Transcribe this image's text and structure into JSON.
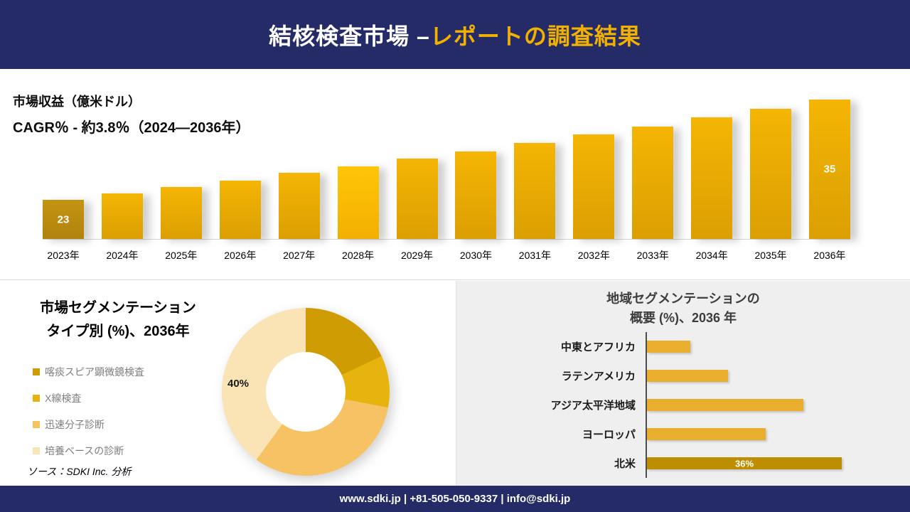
{
  "accent_color": "#f2b100",
  "navy_color": "#242b67",
  "header": {
    "title_main": "結核検査市場 –",
    "title_accent": "レポートの調査結果"
  },
  "revenue": {
    "metric_label": "市場収益（億米ドル）",
    "cagr_label": "CAGR％ - 約3.8％（2024―2036年）"
  },
  "segmentation": {
    "title_line1": "市場セグメンテーション",
    "title_line2": "タイプ別 (%)、2036年",
    "callout_label": "40%"
  },
  "region": {
    "title_line1": "地域セグメンテーションの",
    "title_line2": "概要 (%)、2036 年"
  },
  "source_note": "ソース：SDKI Inc. 分析",
  "footer": {
    "text": "www.sdki.jp | +81-505-050-9337 | info@sdki.jp"
  },
  "chart_data": [
    {
      "type": "bar",
      "title": "市場収益（億米ドル）",
      "subtitle": "CAGR％ - 約3.8％（2024―2036年）",
      "categories": [
        "2023年",
        "2024年",
        "2025年",
        "2026年",
        "2027年",
        "2028年",
        "2029年",
        "2030年",
        "2031年",
        "2032年",
        "2033年",
        "2034年",
        "2035年",
        "2036年"
      ],
      "values": [
        23,
        23.8,
        24.5,
        25.3,
        26.2,
        27.0,
        27.9,
        28.8,
        29.8,
        30.8,
        31.8,
        32.9,
        33.9,
        35
      ],
      "labeled_indices": [
        0,
        13
      ],
      "value_label_first": "23",
      "value_label_last": "35",
      "highlight_index": 5,
      "legend_position": "none",
      "grid": false,
      "bar_color": "#e8ab06",
      "first_bar_color": "#c49412",
      "highlight_bar_color": "#ffc608"
    },
    {
      "type": "pie",
      "donut": true,
      "title": "市場セグメンテーション タイプ別 (%)、2036年",
      "labels": [
        "喀痰スピア顕微鏡検査",
        "X線検査",
        "迅速分子診断",
        "培養ベースの診断"
      ],
      "values": [
        18,
        10,
        32,
        40
      ],
      "colors": [
        "#cf9c04",
        "#e7b30e",
        "#f6c264",
        "#fae3b4"
      ],
      "labeled_slice": {
        "label": "培養ベースの診断",
        "value_label": "40%"
      },
      "legend_position": "left"
    },
    {
      "type": "bar",
      "orientation": "horizontal",
      "title": "地域セグメンテーションの概要 (%)、2036 年",
      "categories": [
        "中東とアフリカ",
        "ラテンアメリカ",
        "アジア太平洋地域",
        "ヨーロッパ",
        "北米"
      ],
      "values": [
        8,
        15,
        29,
        22,
        36
      ],
      "value_labels": [
        "",
        "",
        "",
        "",
        "36%"
      ],
      "colors": [
        "#e9ae2e",
        "#e9ae2e",
        "#e9ae2e",
        "#e9ae2e",
        "#bd8e01"
      ],
      "grid": false,
      "xlim": [
        0,
        40
      ]
    }
  ]
}
